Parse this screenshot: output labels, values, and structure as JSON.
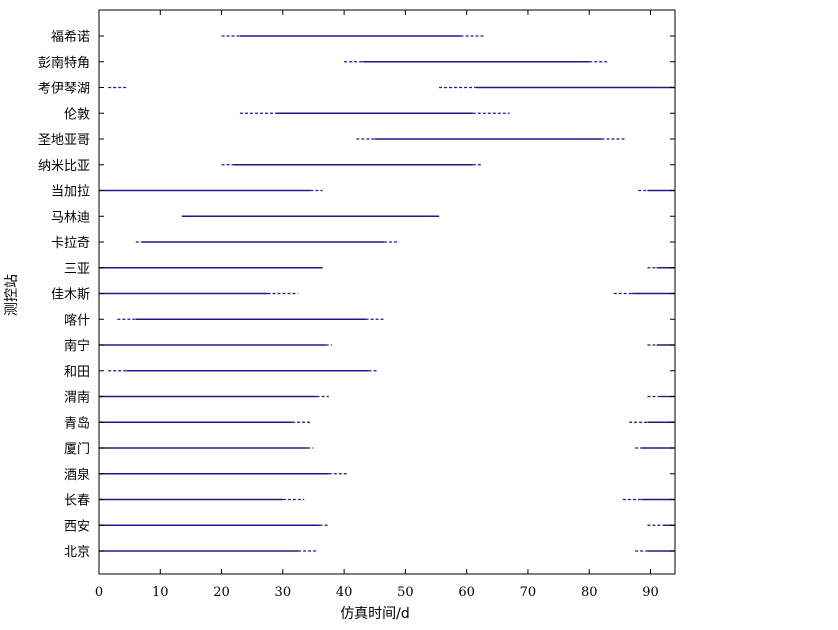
{
  "chart_data": {
    "type": "timeline",
    "xlabel": "仿真时间/d",
    "ylabel": "测控站",
    "xlim": [
      0,
      94
    ],
    "x_ticks": [
      0,
      10,
      20,
      30,
      40,
      50,
      60,
      70,
      80,
      90
    ],
    "grid": false,
    "colors": {
      "solid": "#1a1a8c",
      "dashed": "#1a1a8c",
      "axis": "#000000"
    },
    "stations": [
      {
        "name": "福希诺",
        "solid": [
          [
            23,
            59
          ]
        ],
        "dashed": [
          [
            20,
            23
          ],
          [
            59,
            63
          ]
        ]
      },
      {
        "name": "彭南特角",
        "solid": [
          [
            43,
            80
          ]
        ],
        "dashed": [
          [
            40,
            43
          ],
          [
            80,
            83
          ]
        ]
      },
      {
        "name": "考伊琴湖",
        "solid": [
          [
            61.5,
            94
          ]
        ],
        "dashed": [
          [
            1.5,
            4.5
          ],
          [
            55.5,
            61.5
          ]
        ]
      },
      {
        "name": "伦敦",
        "solid": [
          [
            29,
            61
          ]
        ],
        "dashed": [
          [
            23,
            29
          ],
          [
            61,
            67
          ]
        ]
      },
      {
        "name": "圣地亚哥",
        "solid": [
          [
            45,
            82
          ]
        ],
        "dashed": [
          [
            42,
            45
          ],
          [
            82,
            86
          ]
        ]
      },
      {
        "name": "纳米比亚",
        "solid": [
          [
            22,
            61
          ]
        ],
        "dashed": [
          [
            20,
            22
          ],
          [
            61,
            62.5
          ]
        ]
      },
      {
        "name": "当加拉",
        "solid": [
          [
            0,
            34.5
          ],
          [
            89.5,
            94
          ]
        ],
        "dashed": [
          [
            34.5,
            36.5
          ],
          [
            88,
            89.5
          ]
        ]
      },
      {
        "name": "马林迪",
        "solid": [
          [
            13.5,
            55.5
          ]
        ],
        "dashed": []
      },
      {
        "name": "卡拉奇",
        "solid": [
          [
            7,
            46.5
          ]
        ],
        "dashed": [
          [
            6,
            7
          ],
          [
            46.5,
            49
          ]
        ]
      },
      {
        "name": "三亚",
        "solid": [
          [
            0,
            36.5
          ],
          [
            91,
            94
          ]
        ],
        "dashed": [
          [
            89.5,
            91
          ]
        ]
      },
      {
        "name": "佳木斯",
        "solid": [
          [
            0,
            27.5
          ],
          [
            87,
            94
          ]
        ],
        "dashed": [
          [
            27.5,
            32.5
          ],
          [
            84,
            87
          ]
        ]
      },
      {
        "name": "喀什",
        "solid": [
          [
            6,
            43.5
          ]
        ],
        "dashed": [
          [
            3,
            6
          ],
          [
            43.5,
            46.5
          ]
        ]
      },
      {
        "name": "南宁",
        "solid": [
          [
            0,
            37
          ],
          [
            91,
            94
          ]
        ],
        "dashed": [
          [
            37,
            38
          ],
          [
            89.5,
            91
          ]
        ]
      },
      {
        "name": "和田",
        "solid": [
          [
            4.5,
            44
          ]
        ],
        "dashed": [
          [
            1.5,
            4.5
          ],
          [
            44,
            45.5
          ]
        ]
      },
      {
        "name": "渭南",
        "solid": [
          [
            0,
            35.5
          ],
          [
            91.5,
            94
          ]
        ],
        "dashed": [
          [
            35.5,
            37.5
          ],
          [
            89.5,
            91.5
          ]
        ]
      },
      {
        "name": "青岛",
        "solid": [
          [
            0,
            31.5
          ],
          [
            89.5,
            94
          ]
        ],
        "dashed": [
          [
            31.5,
            34.5
          ],
          [
            86.5,
            89.5
          ]
        ]
      },
      {
        "name": "厦门",
        "solid": [
          [
            0,
            34
          ],
          [
            88.5,
            94
          ]
        ],
        "dashed": [
          [
            34,
            35
          ],
          [
            87.5,
            88.5
          ]
        ]
      },
      {
        "name": "酒泉",
        "solid": [
          [
            0,
            37.5
          ]
        ],
        "dashed": [
          [
            37.5,
            40.5
          ]
        ]
      },
      {
        "name": "长春",
        "solid": [
          [
            0,
            30
          ],
          [
            88.5,
            94
          ]
        ],
        "dashed": [
          [
            30,
            33.5
          ],
          [
            85.5,
            88.5
          ]
        ]
      },
      {
        "name": "西安",
        "solid": [
          [
            0,
            36
          ],
          [
            92,
            94
          ]
        ],
        "dashed": [
          [
            36,
            37.5
          ],
          [
            89.5,
            92
          ]
        ]
      },
      {
        "name": "北京",
        "solid": [
          [
            0,
            32.5
          ],
          [
            89.5,
            94
          ]
        ],
        "dashed": [
          [
            32.5,
            35.5
          ],
          [
            87.5,
            89.5
          ]
        ]
      }
    ]
  }
}
